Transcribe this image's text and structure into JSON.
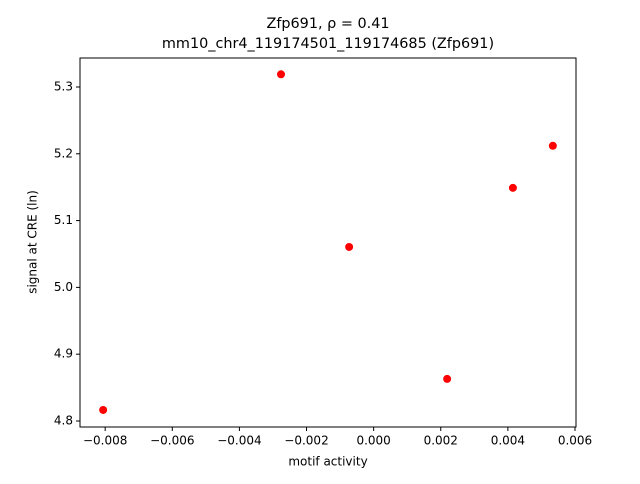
{
  "chart_data": {
    "type": "scatter",
    "title": "Zfp691, ρ = 0.41",
    "subtitle": "mm10_chr4_119174501_119174685 (Zfp691)",
    "x_label": "motif activity",
    "y_label": "signal at CRE (ln)",
    "color": "#ff0000",
    "x": [
      -0.00806,
      -0.00276,
      -0.00073,
      0.00219,
      0.00415,
      0.00534
    ],
    "values": [
      4.8165,
      5.319,
      5.0605,
      4.863,
      5.149,
      5.212
    ],
    "xlim": [
      -0.00875,
      0.00603
    ],
    "ylim": [
      4.791,
      5.3434
    ],
    "xticks": [
      {
        "value": -0.008,
        "label": "−0.008"
      },
      {
        "value": -0.006,
        "label": "−0.006"
      },
      {
        "value": -0.004,
        "label": "−0.004"
      },
      {
        "value": -0.002,
        "label": "−0.002"
      },
      {
        "value": 0,
        "label": "0.000"
      },
      {
        "value": 0.002,
        "label": "0.002"
      },
      {
        "value": 0.004,
        "label": "0.004"
      },
      {
        "value": 0.006,
        "label": "0.006"
      }
    ],
    "yticks": [
      4.8,
      4.9,
      {
        "value": 5,
        "label": "5.0"
      },
      5.1,
      5.2,
      5.3
    ],
    "grid": false
  }
}
